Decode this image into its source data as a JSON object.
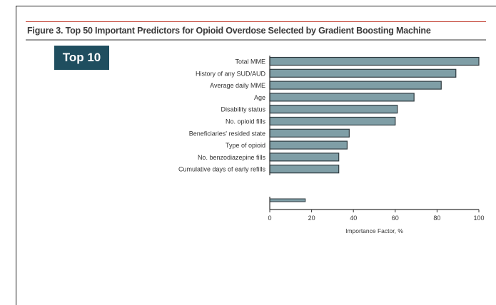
{
  "figure_title": "Figure 3. Top 50 Important Predictors for Opioid Overdose Selected by Gradient Boosting Machine",
  "badge_label": "Top 10",
  "chart_data": {
    "type": "bar",
    "orientation": "horizontal",
    "categories": [
      "Total MME",
      "History of any SUD/AUD",
      "Average daily MME",
      "Age",
      "Disability status",
      "No. opioid fills",
      "Beneficiaries' resided state",
      "Type of opioid",
      "No. benzodiazepine fills",
      "Cumulative days of early refills"
    ],
    "values": [
      100,
      89,
      82,
      69,
      61,
      60,
      38,
      37,
      33,
      33
    ],
    "cut_off_bar_value": 17,
    "xlabel": "Importance Factor, %",
    "xlim": [
      0,
      100
    ],
    "xticks": [
      0,
      20,
      40,
      60,
      80,
      100
    ],
    "bar_color": "#7f9ea6",
    "bar_edge_color": "#2f3b40"
  }
}
